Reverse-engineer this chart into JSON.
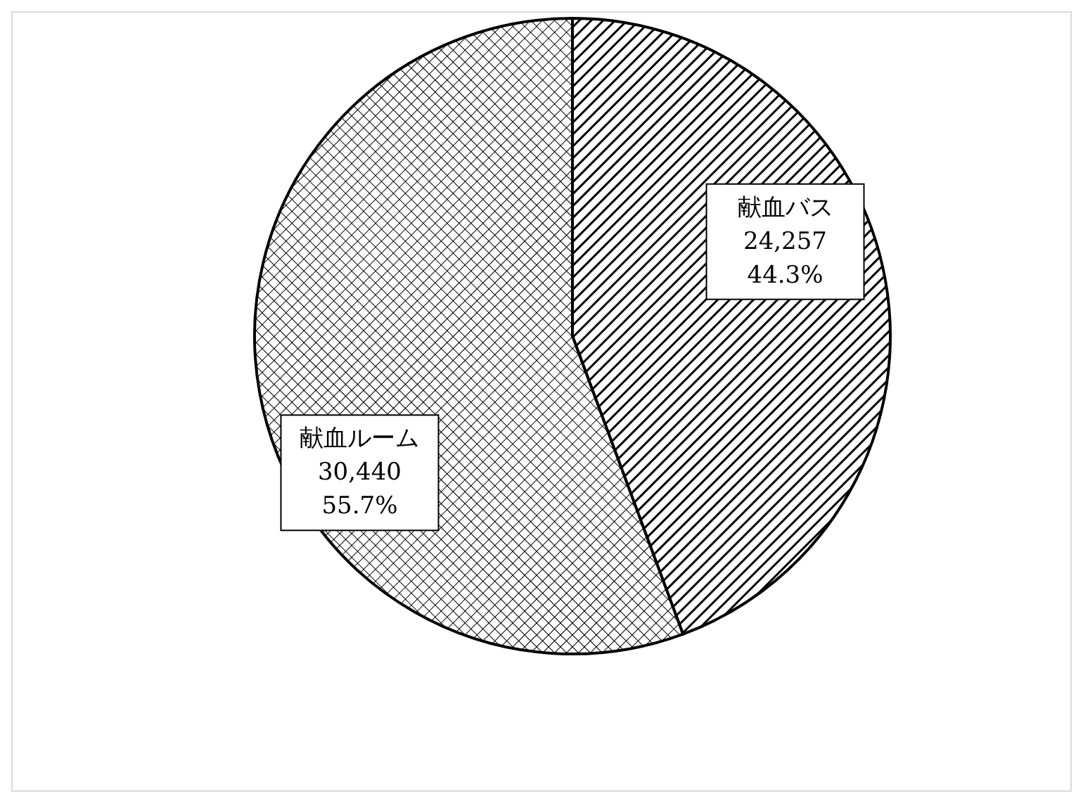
{
  "chart_data": {
    "type": "pie",
    "categories": [
      "献血バス",
      "献血ルーム"
    ],
    "values": [
      24257,
      30440
    ],
    "colors": [
      "#000000",
      "#000000"
    ],
    "value_labels": [
      "24,257\n44.3%",
      "30,440\n55.7%"
    ]
  }
}
